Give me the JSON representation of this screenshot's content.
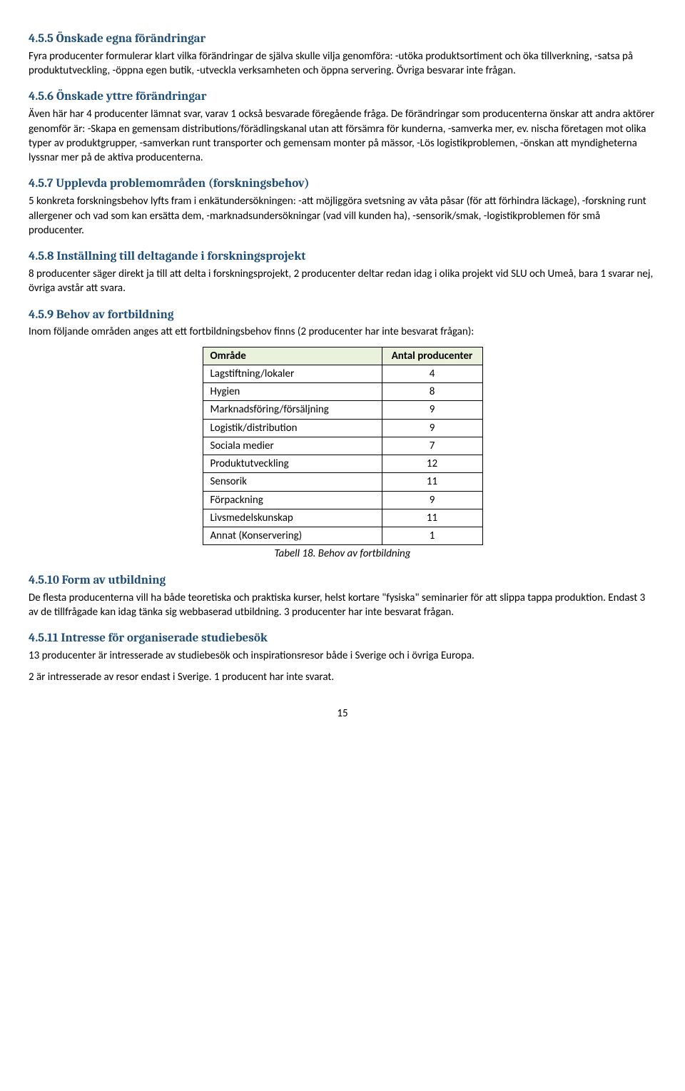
{
  "sections": {
    "s455": {
      "heading": "4.5.5 Önskade egna förändringar",
      "body": "Fyra producenter formulerar klart vilka förändringar de själva skulle vilja genomföra: -utöka produktsortiment och öka tillverkning, -satsa på produktutveckling, -öppna egen butik, -utveckla verksamheten och öppna servering. Övriga besvarar inte frågan."
    },
    "s456": {
      "heading": "4.5.6 Önskade yttre förändringar",
      "body": "Även här har 4 producenter lämnat svar, varav 1 också besvarade föregående fråga. De förändringar som producenterna önskar att andra aktörer genomför är: -Skapa en gemensam distributions/förädlingskanal utan att försämra för kunderna, -samverka mer, ev. nischa företagen mot olika typer av produktgrupper, -samverkan runt transporter och gemensam monter på mässor,  -Lös logistikproblemen, -önskan att myndigheterna lyssnar mer på de aktiva producenterna."
    },
    "s457": {
      "heading": "4.5.7 Upplevda problemområden (forskningsbehov)",
      "body": "5 konkreta forskningsbehov lyfts fram i enkätundersökningen: -att möjliggöra svetsning av våta påsar (för att förhindra läckage), -forskning runt allergener och vad som kan ersätta dem, -marknadsundersökningar (vad vill kunden ha), -sensorik/smak, -logistikproblemen för små producenter."
    },
    "s458": {
      "heading": "4.5.8 Inställning till deltagande i forskningsprojekt",
      "body": "8 producenter säger direkt ja till att delta i forskningsprojekt, 2 producenter deltar redan idag i olika projekt vid SLU och Umeå, bara 1 svarar nej, övriga avstår att svara."
    },
    "s459": {
      "heading": "4.5.9 Behov av fortbildning",
      "body": "Inom följande områden anges att ett fortbildningsbehov finns (2 producenter har inte besvarat frågan):"
    },
    "s4510": {
      "heading": "4.5.10 Form av utbildning",
      "body": "De flesta producenterna vill ha både teoretiska och praktiska kurser, helst kortare \"fysiska\" seminarier för att slippa tappa produktion. Endast 3 av de tillfrågade kan idag tänka sig webbaserad utbildning. 3 producenter har inte besvarat frågan."
    },
    "s4511": {
      "heading": "4.5.11 Intresse för organiserade studiebesök",
      "body1": "13 producenter är intresserade av studiebesök och inspirationsresor både i Sverige och i övriga Europa.",
      "body2": "2 är intresserade av resor endast i Sverige. 1 producent har inte svarat."
    }
  },
  "table": {
    "header_area": "Område",
    "header_count": "Antal producenter",
    "rows": [
      {
        "area": "Lagstiftning/lokaler",
        "count": "4"
      },
      {
        "area": "Hygien",
        "count": "8"
      },
      {
        "area": "Marknadsföring/försäljning",
        "count": "9"
      },
      {
        "area": "Logistik/distribution",
        "count": "9"
      },
      {
        "area": "Sociala medier",
        "count": "7"
      },
      {
        "area": "Produktutveckling",
        "count": "12"
      },
      {
        "area": "Sensorik",
        "count": "11"
      },
      {
        "area": "Förpackning",
        "count": "9"
      },
      {
        "area": "Livsmedelskunskap",
        "count": "11"
      },
      {
        "area": "Annat (Konservering)",
        "count": "1"
      }
    ],
    "caption": "Tabell 18. Behov av fortbildning"
  },
  "page_number": "15"
}
